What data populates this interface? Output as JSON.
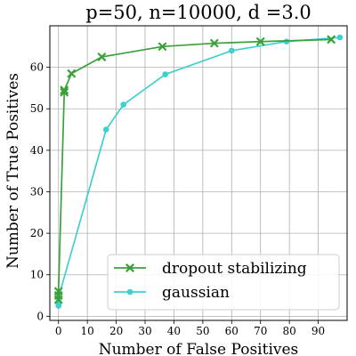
{
  "chart_data": {
    "type": "line",
    "title": "p=50, n=10000, d =3.0",
    "xlabel": "Number of False Positives",
    "ylabel": "Number of True Positives",
    "xlim": [
      -3,
      100
    ],
    "ylim": [
      -1,
      70
    ],
    "xticks": [
      0,
      10,
      20,
      30,
      40,
      50,
      60,
      70,
      80,
      90
    ],
    "yticks": [
      0,
      10,
      20,
      30,
      40,
      50,
      60
    ],
    "grid": true,
    "legend_position": "lower-right",
    "series": [
      {
        "name": "dropout stabilizing",
        "color": "#3aa13a",
        "marker": "x",
        "points": [
          [
            0,
            4
          ],
          [
            0,
            5
          ],
          [
            0,
            6
          ],
          [
            2,
            54
          ],
          [
            2,
            54.5
          ],
          [
            4.5,
            58.5
          ],
          [
            15,
            62.5
          ],
          [
            36,
            65
          ],
          [
            54,
            65.8
          ],
          [
            70,
            66.2
          ],
          [
            94.5,
            66.7
          ]
        ]
      },
      {
        "name": "gaussian",
        "color": "#3ecfcf",
        "marker": "o",
        "points": [
          [
            0,
            2.5
          ],
          [
            0,
            3
          ],
          [
            0,
            3.5
          ],
          [
            0,
            4.5
          ],
          [
            16.5,
            45
          ],
          [
            22.5,
            51
          ],
          [
            37,
            58.3
          ],
          [
            60,
            64
          ],
          [
            79,
            66.2
          ],
          [
            97.5,
            67.2
          ]
        ]
      }
    ]
  }
}
